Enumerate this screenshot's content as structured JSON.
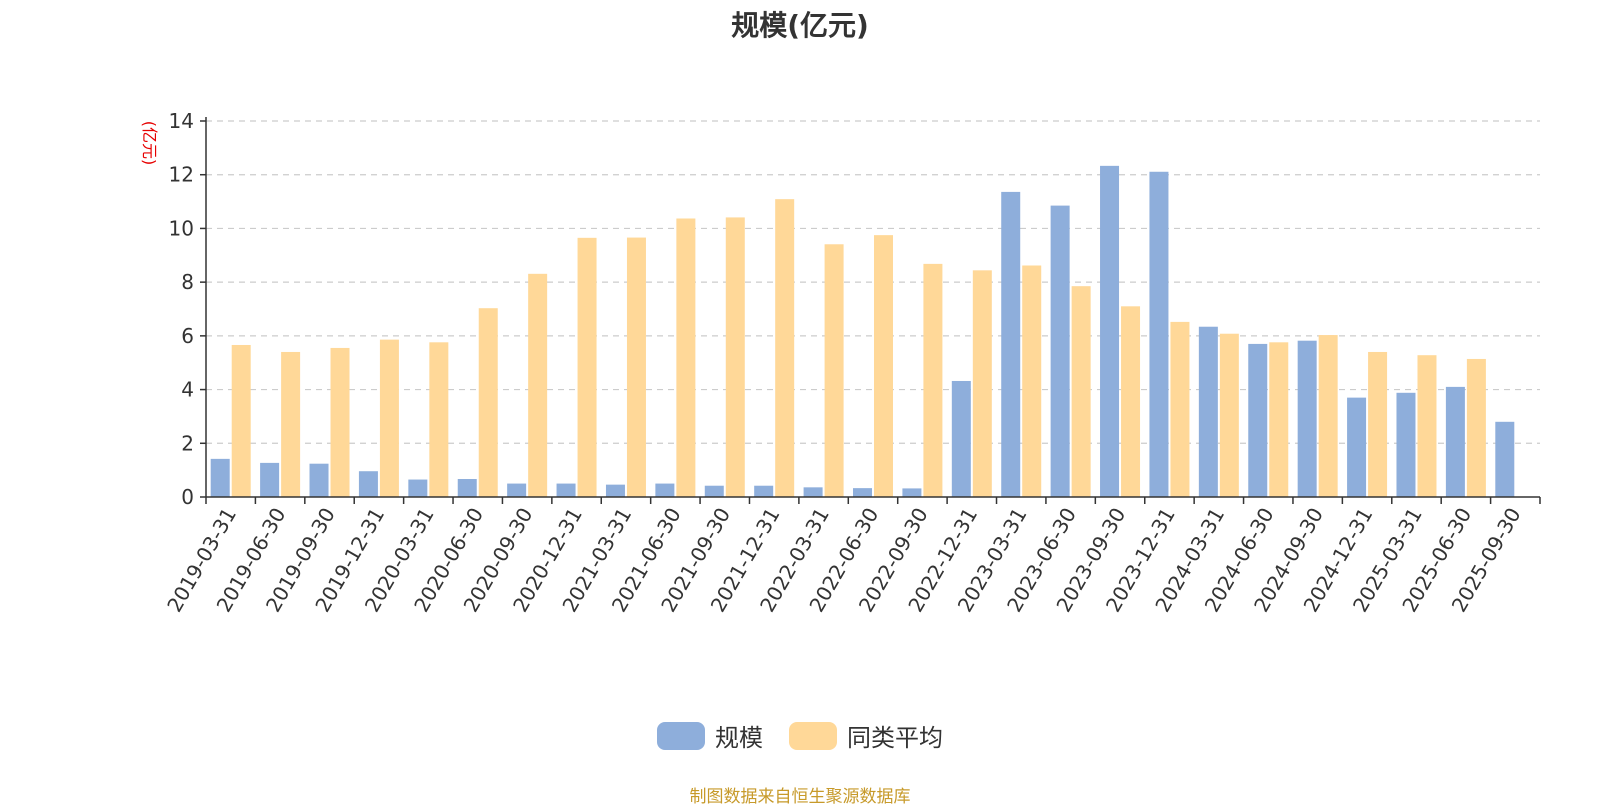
{
  "chart_data": {
    "type": "bar",
    "title": "规模(亿元)",
    "ylabel": "(亿元)",
    "xlabel": "",
    "ylim": [
      0,
      14
    ],
    "yticks": [
      0,
      2,
      4,
      6,
      8,
      10,
      12,
      14
    ],
    "grid": true,
    "legend_position": "bottom",
    "categories": [
      "2019-03-31",
      "2019-06-30",
      "2019-09-30",
      "2019-12-31",
      "2020-03-31",
      "2020-06-30",
      "2020-09-30",
      "2020-12-31",
      "2021-03-31",
      "2021-06-30",
      "2021-09-30",
      "2021-12-31",
      "2022-03-31",
      "2022-06-30",
      "2022-09-30",
      "2022-12-31",
      "2023-03-31",
      "2023-06-30",
      "2023-09-30",
      "2023-12-31",
      "2024-03-31",
      "2024-06-30",
      "2024-09-30",
      "2024-12-31",
      "2025-03-31",
      "2025-06-30",
      "2025-09-30"
    ],
    "series": [
      {
        "name": "规模",
        "color": "#8eaedb",
        "values": [
          1.42,
          1.27,
          1.24,
          0.96,
          0.65,
          0.67,
          0.5,
          0.5,
          0.46,
          0.5,
          0.42,
          0.42,
          0.36,
          0.33,
          0.32,
          4.32,
          11.36,
          10.85,
          12.33,
          12.11,
          6.34,
          5.7,
          5.82,
          3.7,
          3.88,
          4.1,
          2.8
        ]
      },
      {
        "name": "同类平均",
        "color": "#ffd898",
        "values": [
          5.66,
          5.4,
          5.55,
          5.86,
          5.76,
          7.03,
          8.31,
          9.65,
          9.66,
          10.37,
          10.41,
          11.09,
          9.41,
          9.75,
          8.68,
          8.44,
          8.62,
          7.85,
          7.1,
          6.52,
          6.08,
          5.76,
          6.03,
          5.4,
          5.28,
          5.14,
          null
        ]
      }
    ]
  },
  "source_note": "制图数据来自恒生聚源数据库",
  "colors": {
    "axis": "#333333",
    "grid": "#cccccc",
    "ylabel": "#e60000",
    "source": "#c79a2a"
  }
}
